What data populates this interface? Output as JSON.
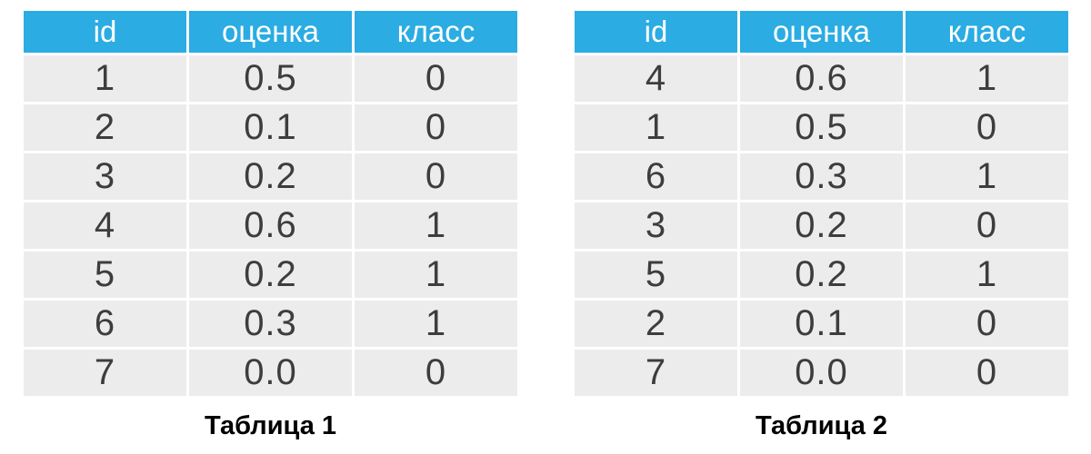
{
  "colors": {
    "header_bg": "#2bace2",
    "header_text": "#ffffff",
    "row_bg": "#ececec",
    "cell_text": "#3d3d3d",
    "caption_text": "#000000",
    "page_bg": "#ffffff"
  },
  "tables": [
    {
      "caption": "Таблица 1",
      "columns": [
        "id",
        "оценка",
        "класс"
      ],
      "rows": [
        [
          "1",
          "0.5",
          "0"
        ],
        [
          "2",
          "0.1",
          "0"
        ],
        [
          "3",
          "0.2",
          "0"
        ],
        [
          "4",
          "0.6",
          "1"
        ],
        [
          "5",
          "0.2",
          "1"
        ],
        [
          "6",
          "0.3",
          "1"
        ],
        [
          "7",
          "0.0",
          "0"
        ]
      ]
    },
    {
      "caption": "Таблица 2",
      "columns": [
        "id",
        "оценка",
        "класс"
      ],
      "rows": [
        [
          "4",
          "0.6",
          "1"
        ],
        [
          "1",
          "0.5",
          "0"
        ],
        [
          "6",
          "0.3",
          "1"
        ],
        [
          "3",
          "0.2",
          "0"
        ],
        [
          "5",
          "0.2",
          "1"
        ],
        [
          "2",
          "0.1",
          "0"
        ],
        [
          "7",
          "0.0",
          "0"
        ]
      ]
    }
  ],
  "chart_data": [
    {
      "type": "table",
      "title": "Таблица 1",
      "columns": [
        "id",
        "оценка",
        "класс"
      ],
      "rows": [
        [
          1,
          0.5,
          0
        ],
        [
          2,
          0.1,
          0
        ],
        [
          3,
          0.2,
          0
        ],
        [
          4,
          0.6,
          1
        ],
        [
          5,
          0.2,
          1
        ],
        [
          6,
          0.3,
          1
        ],
        [
          7,
          0.0,
          0
        ]
      ]
    },
    {
      "type": "table",
      "title": "Таблица 2",
      "columns": [
        "id",
        "оценка",
        "класс"
      ],
      "rows": [
        [
          4,
          0.6,
          1
        ],
        [
          1,
          0.5,
          0
        ],
        [
          6,
          0.3,
          1
        ],
        [
          3,
          0.2,
          0
        ],
        [
          5,
          0.2,
          1
        ],
        [
          2,
          0.1,
          0
        ],
        [
          7,
          0.0,
          0
        ]
      ]
    }
  ]
}
